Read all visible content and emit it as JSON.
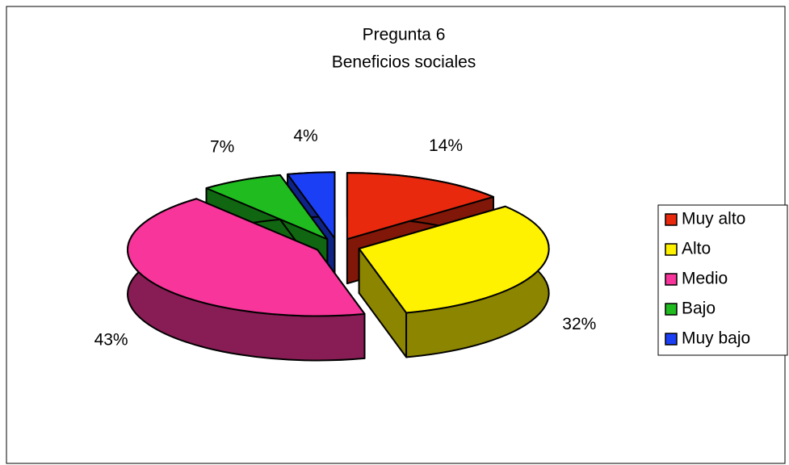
{
  "chart_data": {
    "type": "pie",
    "title": "Pregunta 6",
    "subtitle": "Beneficios sociales",
    "categories": [
      "Muy alto",
      "Alto",
      "Medio",
      "Bajo",
      "Muy bajo"
    ],
    "values": [
      14,
      32,
      43,
      7,
      4
    ],
    "value_labels": [
      "14%",
      "32%",
      "43%",
      "7%",
      "4%"
    ],
    "colors": [
      "#e8290e",
      "#fff200",
      "#f7359a",
      "#1fbb1f",
      "#1b3ff5"
    ],
    "legend": "right"
  }
}
